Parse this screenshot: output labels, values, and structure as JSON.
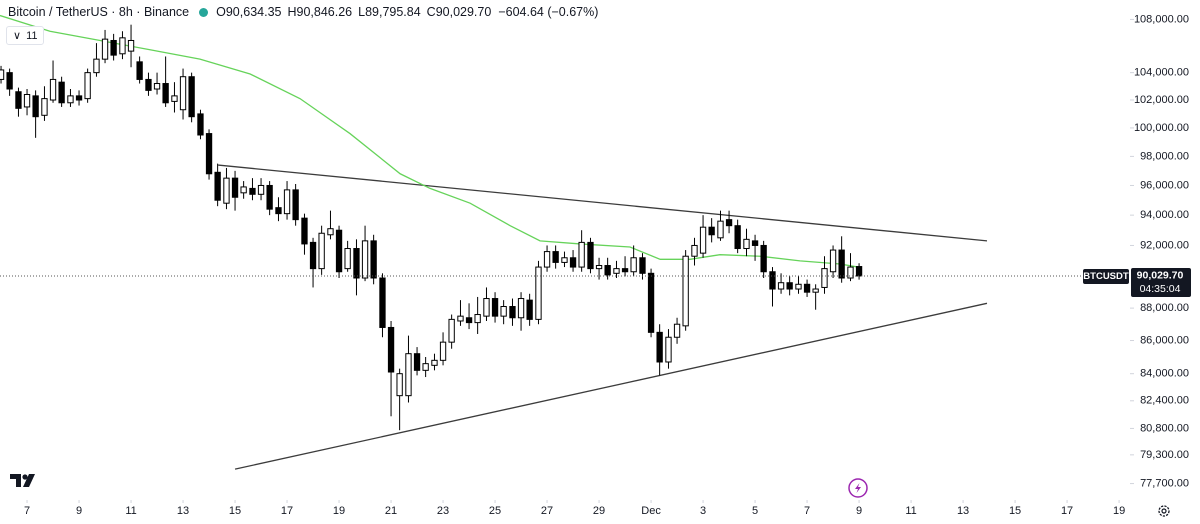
{
  "chart_data": {
    "type": "candlestick",
    "title": "Bitcoin / TetherUS · 8h · Binance",
    "legend": [
      {
        "label": "O",
        "text": "90,634.35"
      },
      {
        "label": "H",
        "text": "90,846.26"
      },
      {
        "label": "L",
        "text": "89,795.84"
      },
      {
        "label": "C",
        "text": "90,029.70"
      }
    ],
    "change": "−604.64 (−0.67%)",
    "indicator_count": "11",
    "symbol": "BTCUSDT",
    "last_price_label": "90,029.70",
    "countdown": "04:35:04",
    "log_scale": true,
    "up_color": "#ffffff",
    "down_color": "#000000",
    "x": [
      -1,
      -0.67,
      -0.33,
      0,
      0.33,
      0.67,
      1,
      1.33,
      1.67,
      2,
      2.33,
      2.67,
      3,
      3.33,
      3.67,
      4,
      4.33,
      4.67,
      5,
      5.33,
      5.67,
      6,
      6.33,
      6.67,
      7,
      7.33,
      7.67,
      8,
      8.33,
      8.67,
      9,
      9.33,
      9.67,
      10,
      10.33,
      10.67,
      11,
      11.33,
      11.67,
      12,
      12.33,
      12.67,
      13,
      13.33,
      13.67,
      14,
      14.33,
      14.67,
      15,
      15.33,
      15.67,
      16,
      16.33,
      16.67,
      17,
      17.33,
      17.67,
      18,
      18.33,
      18.67,
      19,
      19.33,
      19.67,
      20,
      20.33,
      20.67,
      21,
      21.33,
      21.67,
      22,
      22.33,
      22.67,
      23,
      23.33,
      23.67,
      24,
      24.33,
      24.67,
      25,
      25.33,
      25.67,
      26,
      26.33,
      26.67,
      27,
      27.33,
      27.67,
      28,
      28.33,
      28.67,
      29,
      29.33,
      29.67,
      30,
      30.33,
      30.67,
      31,
      31.33,
      31.67,
      32
    ],
    "open": [
      103500,
      104000,
      102600,
      101500,
      102300,
      100900,
      102000,
      103300,
      101800,
      102300,
      102100,
      104000,
      105000,
      106400,
      105400,
      105600,
      104800,
      103500,
      102800,
      103200,
      101900,
      101300,
      103700,
      101000,
      99600,
      96900,
      94800,
      96500,
      95500,
      95800,
      95400,
      96000,
      94500,
      94100,
      95700,
      93800,
      92200,
      90500,
      92700,
      93000,
      90500,
      91800,
      89900,
      92300,
      89900,
      86800,
      82700,
      82700,
      85200,
      84200,
      84500,
      84800,
      85900,
      87200,
      87400,
      87100,
      87500,
      88600,
      87500,
      88100,
      87400,
      88500,
      87300,
      90600,
      91600,
      90900,
      91200,
      90600,
      92200,
      90500,
      90700,
      90200,
      90500,
      90300,
      91200,
      90200,
      86500,
      84700,
      86200,
      86900,
      91300,
      91500,
      93200,
      92500,
      93700,
      93300,
      91800,
      92300,
      92000,
      90300,
      89200,
      89600,
      89200,
      89500,
      89000,
      89300,
      90300,
      91700,
      89900,
      90634.35
    ],
    "high": [
      104500,
      104300,
      102900,
      102800,
      102700,
      103000,
      104900,
      103700,
      102800,
      102700,
      104300,
      106200,
      107200,
      106900,
      107100,
      107600,
      105200,
      104000,
      104000,
      105200,
      103300,
      104300,
      104000,
      101300,
      99900,
      97500,
      97200,
      97000,
      96300,
      96500,
      96500,
      96300,
      95200,
      96300,
      96100,
      94100,
      92500,
      93300,
      94300,
      93300,
      92300,
      92400,
      93300,
      92700,
      90200,
      87200,
      84300,
      86300,
      85600,
      85000,
      85200,
      86500,
      87600,
      88500,
      88300,
      88700,
      89300,
      89000,
      88500,
      88600,
      89000,
      88900,
      91000,
      92000,
      92000,
      91600,
      91700,
      93000,
      92500,
      91200,
      91200,
      91000,
      91300,
      92000,
      91500,
      90500,
      87000,
      86700,
      87400,
      91700,
      92500,
      94000,
      93800,
      94300,
      94300,
      93700,
      93100,
      92700,
      92300,
      90600,
      90200,
      90000,
      90000,
      89800,
      89500,
      91300,
      92000,
      92600,
      91500,
      90846.26
    ],
    "low": [
      103200,
      102300,
      100800,
      100900,
      99300,
      100500,
      101800,
      101500,
      101500,
      101600,
      101800,
      103700,
      104700,
      104900,
      105000,
      104400,
      103200,
      102300,
      102400,
      101500,
      101100,
      100600,
      100400,
      99200,
      96400,
      94600,
      94400,
      94300,
      95100,
      95000,
      95000,
      94000,
      93600,
      93700,
      93300,
      91400,
      89300,
      90100,
      92400,
      89900,
      90300,
      88800,
      89700,
      89500,
      86200,
      81500,
      80700,
      82300,
      83900,
      83800,
      84200,
      84500,
      85500,
      86900,
      86700,
      86400,
      87200,
      87100,
      87000,
      86900,
      86600,
      86900,
      87000,
      90300,
      90500,
      90600,
      90300,
      90300,
      90200,
      89800,
      89800,
      89900,
      90000,
      90000,
      89800,
      86200,
      83900,
      84300,
      85800,
      86600,
      90700,
      91200,
      92200,
      92300,
      92800,
      91500,
      91300,
      91000,
      89900,
      88100,
      88900,
      88800,
      88900,
      88700,
      87900,
      88900,
      89900,
      89600,
      89700,
      89795.84
    ],
    "close": [
      104200,
      102800,
      101400,
      102400,
      100800,
      102100,
      103500,
      101800,
      102300,
      102000,
      104000,
      105000,
      106500,
      105300,
      106600,
      106400,
      103500,
      102700,
      103200,
      101800,
      102300,
      103700,
      100800,
      99500,
      96800,
      95000,
      96500,
      95200,
      95900,
      95400,
      96000,
      94400,
      94100,
      95700,
      93700,
      92100,
      90500,
      92800,
      93100,
      90300,
      91800,
      89900,
      92300,
      89900,
      86800,
      84100,
      84000,
      85200,
      84200,
      84600,
      84800,
      85900,
      87300,
      87500,
      87100,
      87600,
      88600,
      87500,
      88100,
      87400,
      88600,
      87300,
      90600,
      91600,
      90900,
      91200,
      90600,
      92200,
      90500,
      90700,
      90100,
      90500,
      90300,
      91200,
      90200,
      86500,
      84700,
      86200,
      87000,
      91300,
      92000,
      93200,
      92700,
      93600,
      93300,
      91800,
      92400,
      92000,
      90300,
      89200,
      89600,
      89200,
      89500,
      89000,
      89200,
      90500,
      91700,
      89900,
      90600,
      90029.7
    ],
    "ma": {
      "color": "#66d35a",
      "x": [
        -1.04,
        0.88,
        2.81,
        4.73,
        6.65,
        8.58,
        10.5,
        12.42,
        14.35,
        15.5,
        17.04,
        18.58,
        19.73,
        21.27,
        23.19,
        24.35,
        25.5,
        26.65,
        28.19,
        29.73,
        31.27,
        31.96
      ],
      "values": [
        108300,
        107100,
        106400,
        105700,
        105000,
        103900,
        102100,
        99600,
        96800,
        95800,
        94800,
        93300,
        92300,
        92100,
        91900,
        91100,
        91100,
        91400,
        91300,
        91000,
        90800,
        90600
      ]
    },
    "trendlines": [
      {
        "color": "#3c3c3c",
        "x": [
          7.35,
          36.92
        ],
        "values": [
          97400,
          92300
        ]
      },
      {
        "color": "#3c3c3c",
        "x": [
          8.0,
          36.92
        ],
        "values": [
          78500,
          88300
        ]
      }
    ],
    "xlim": [
      -1.04,
      42.42
    ],
    "xticks": [
      {
        "value": 0,
        "label": "7"
      },
      {
        "value": 2,
        "label": "9"
      },
      {
        "value": 4,
        "label": "11"
      },
      {
        "value": 6,
        "label": "13"
      },
      {
        "value": 8,
        "label": "15"
      },
      {
        "value": 10,
        "label": "17"
      },
      {
        "value": 12,
        "label": "19"
      },
      {
        "value": 14,
        "label": "21"
      },
      {
        "value": 16,
        "label": "23"
      },
      {
        "value": 18,
        "label": "25"
      },
      {
        "value": 20,
        "label": "27"
      },
      {
        "value": 22,
        "label": "29"
      },
      {
        "value": 24,
        "label": "Dec"
      },
      {
        "value": 26,
        "label": "3"
      },
      {
        "value": 28,
        "label": "5"
      },
      {
        "value": 30,
        "label": "7"
      },
      {
        "value": 32,
        "label": "9"
      },
      {
        "value": 34,
        "label": "11"
      },
      {
        "value": 36,
        "label": "13"
      },
      {
        "value": 38,
        "label": "15"
      },
      {
        "value": 40,
        "label": "17"
      },
      {
        "value": 42,
        "label": "19"
      }
    ],
    "ylim": [
      76800,
      109500
    ],
    "yticks": [
      {
        "value": 108000,
        "label": "108,000.00"
      },
      {
        "value": 104000,
        "label": "104,000.00"
      },
      {
        "value": 102000,
        "label": "102,000.00"
      },
      {
        "value": 100000,
        "label": "100,000.00"
      },
      {
        "value": 98000,
        "label": "98,000.00"
      },
      {
        "value": 96000,
        "label": "96,000.00"
      },
      {
        "value": 94000,
        "label": "94,000.00"
      },
      {
        "value": 92000,
        "label": "92,000.00"
      },
      {
        "value": 88000,
        "label": "88,000.00"
      },
      {
        "value": 86000,
        "label": "86,000.00"
      },
      {
        "value": 84000,
        "label": "84,000.00"
      },
      {
        "value": 82400,
        "label": "82,400.00"
      },
      {
        "value": 80800,
        "label": "80,800.00"
      },
      {
        "value": 79300,
        "label": "79,300.00"
      },
      {
        "value": 77700,
        "label": "77,700.00"
      }
    ]
  }
}
